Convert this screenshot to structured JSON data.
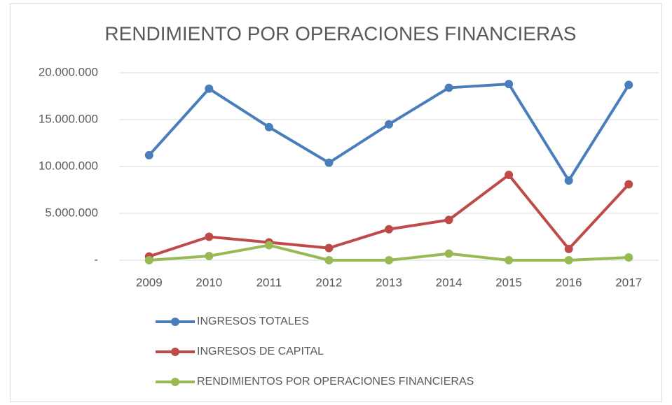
{
  "chart_data": {
    "type": "line",
    "title": "RENDIMIENTO POR OPERACIONES FINANCIERAS",
    "categories": [
      "2009",
      "2010",
      "2011",
      "2012",
      "2013",
      "2014",
      "2015",
      "2016",
      "2017"
    ],
    "series": [
      {
        "name": "INGRESOS TOTALES",
        "color": "#4a7ebb",
        "values": [
          11200000,
          18300000,
          14200000,
          10400000,
          14500000,
          18400000,
          18800000,
          8500000,
          18700000
        ]
      },
      {
        "name": "INGRESOS DE CAPITAL",
        "color": "#be4b48",
        "values": [
          400000,
          2500000,
          1900000,
          1300000,
          3300000,
          4300000,
          9100000,
          1200000,
          8100000
        ]
      },
      {
        "name": "RENDIMIENTOS POR OPERACIONES FINANCIERAS",
        "color": "#98b954",
        "values": [
          0,
          450000,
          1600000,
          0,
          0,
          700000,
          0,
          0,
          300000
        ]
      }
    ],
    "ylim": [
      0,
      20000000
    ],
    "yticks": [
      {
        "value": 0,
        "label": "-"
      },
      {
        "value": 5000000,
        "label": "5.000.000"
      },
      {
        "value": 10000000,
        "label": "10.000.000"
      },
      {
        "value": 15000000,
        "label": "15.000.000"
      },
      {
        "value": 20000000,
        "label": "20.000.000"
      }
    ],
    "grid": true,
    "legend": "bottom"
  }
}
